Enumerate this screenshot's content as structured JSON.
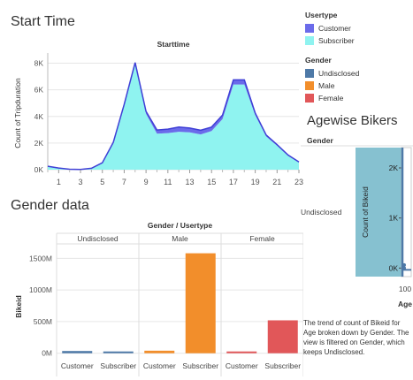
{
  "headers": {
    "start_time": "Start Time",
    "gender_data": "Gender data",
    "agewise": "Agewise Bikers"
  },
  "legend": {
    "usertype_title": "Usertype",
    "usertype": [
      {
        "label": "Customer",
        "color": "#6b6bea"
      },
      {
        "label": "Subscriber",
        "color": "#8ff3f0"
      }
    ],
    "gender_title": "Gender",
    "gender": [
      {
        "label": "Undisclosed",
        "color": "#4e79a7"
      },
      {
        "label": "Male",
        "color": "#f28e2b"
      },
      {
        "label": "Female",
        "color": "#e15759"
      }
    ]
  },
  "description": "The trend of count of Bikeid for Age broken down by Gender. The view is filtered on Gender, which keeps Undisclosed.",
  "chart_data": [
    {
      "type": "area",
      "title": "Starttime",
      "xlabel": "",
      "ylabel": "Count of Tripduration",
      "x": [
        0,
        1,
        2,
        3,
        4,
        5,
        6,
        7,
        8,
        9,
        10,
        11,
        12,
        13,
        14,
        15,
        16,
        17,
        18,
        19,
        20,
        21,
        22,
        23
      ],
      "x_ticks": [
        "1",
        "3",
        "5",
        "7",
        "9",
        "11",
        "13",
        "15",
        "17",
        "19",
        "21",
        "23"
      ],
      "y_ticks": [
        "0K",
        "2K",
        "4K",
        "6K",
        "8K"
      ],
      "ylim": [
        0,
        8500
      ],
      "stacked": true,
      "series": [
        {
          "name": "Subscriber",
          "color": "#8ff3f0",
          "values": [
            250,
            120,
            30,
            10,
            100,
            500,
            2000,
            4800,
            7900,
            4200,
            2700,
            2750,
            2850,
            2800,
            2650,
            2900,
            3800,
            6400,
            6400,
            4100,
            2500,
            1800,
            1050,
            550
          ]
        },
        {
          "name": "Customer",
          "color": "#6b6bea",
          "values": [
            10,
            5,
            3,
            2,
            5,
            20,
            50,
            100,
            150,
            180,
            280,
            300,
            350,
            330,
            320,
            300,
            300,
            350,
            350,
            150,
            100,
            80,
            50,
            30
          ]
        }
      ],
      "grid": true
    },
    {
      "type": "bar",
      "title": "Gender / Usertype",
      "ylabel": "Bikeid",
      "groups": [
        "Undisclosed",
        "Male",
        "Female"
      ],
      "categories": [
        "Customer",
        "Subscriber"
      ],
      "y_ticks": [
        "0M",
        "500M",
        "1000M",
        "1500M"
      ],
      "ylim": [
        -60,
        1700
      ],
      "series": [
        {
          "group": "Undisclosed",
          "color": "#4e79a7",
          "values": [
            35,
            20
          ]
        },
        {
          "group": "Male",
          "color": "#f28e2b",
          "values": [
            40,
            1580
          ]
        },
        {
          "group": "Female",
          "color": "#e15759",
          "values": [
            5,
            520
          ]
        }
      ],
      "grid": true
    },
    {
      "type": "scatter",
      "title": "Gender",
      "xlabel": "Age",
      "ylabel": "Count of Bikeid",
      "row_label": "Undisclosed",
      "y_ticks": [
        "0K",
        "1K",
        "2K"
      ],
      "x_ticks": [
        "100"
      ],
      "ylim": [
        -100,
        2300
      ],
      "series": [
        {
          "name": "Undisclosed",
          "color": "#4e79a7",
          "points": [
            [
              100,
              0
            ],
            [
              100,
              60
            ]
          ]
        }
      ]
    }
  ]
}
